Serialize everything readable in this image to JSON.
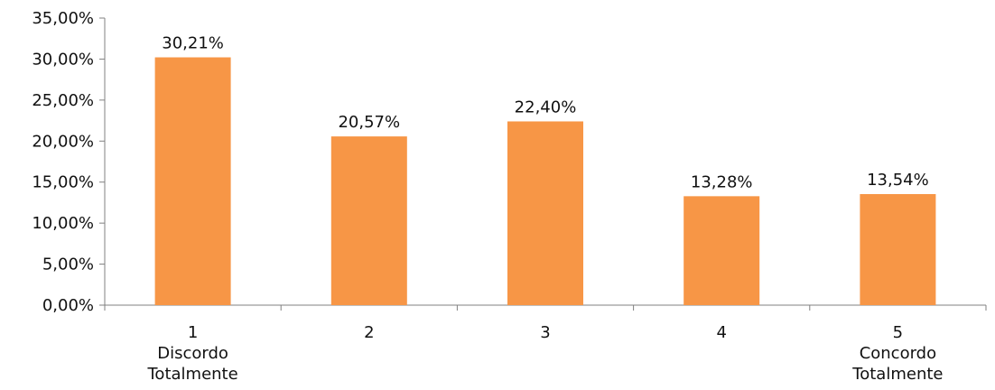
{
  "chart_data": {
    "type": "bar",
    "categories": [
      [
        "1",
        "Discordo",
        "Totalmente"
      ],
      [
        "2"
      ],
      [
        "3"
      ],
      [
        "4"
      ],
      [
        "5",
        "Concordo",
        "Totalmente"
      ]
    ],
    "values": [
      30.21,
      20.57,
      22.4,
      13.28,
      13.54
    ],
    "value_labels": [
      "30,21%",
      "20,57%",
      "22,40%",
      "13,28%",
      "13,54%"
    ],
    "y_ticks": [
      "0,00%",
      "5,00%",
      "10,00%",
      "15,00%",
      "20,00%",
      "25,00%",
      "30,00%",
      "35,00%"
    ],
    "ylim": [
      0,
      35
    ],
    "ystep": 5,
    "grid": false,
    "colors": {
      "bar": "#f79646",
      "axis": "#808080",
      "text": "#111111"
    }
  }
}
